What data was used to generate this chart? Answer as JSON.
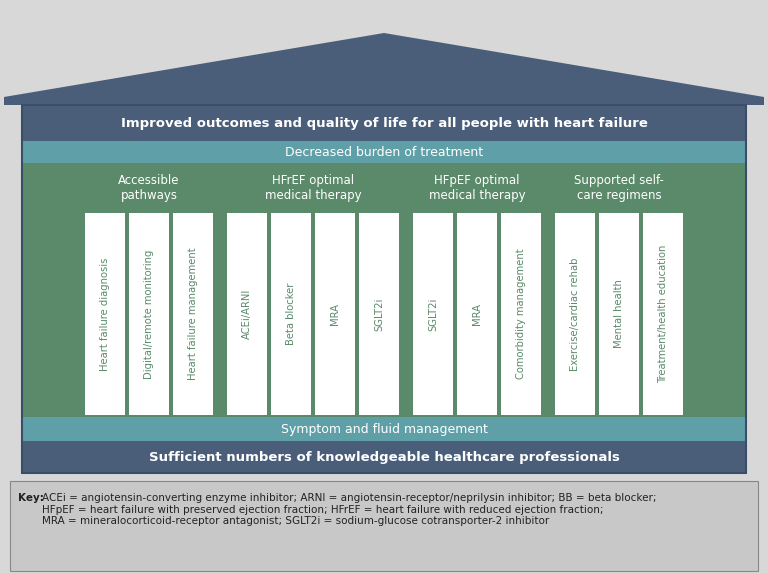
{
  "bg_color": "#d8d8d8",
  "roof_color": "#4a5e7a",
  "top_banner_color": "#4a5e7a",
  "top_banner_text": "Improved outcomes and quality of life for all people with heart failure",
  "second_banner_color": "#5fa0a8",
  "second_banner_text": "Decreased burden of treatment",
  "bottom_banner1_color": "#5fa0a8",
  "bottom_banner1_text": "Symptom and fluid management",
  "bottom_banner2_color": "#4a5e7a",
  "bottom_banner2_text": "Sufficient numbers of knowledgeable healthcare professionals",
  "main_bg": "#5a8a6a",
  "pillar_color": "#ffffff",
  "groups": [
    {
      "label": "Accessible\npathways",
      "pillars": [
        "Heart failure diagnosis",
        "Digital/remote monitoring",
        "Heart failure management"
      ]
    },
    {
      "label": "HFrEF optimal\nmedical therapy",
      "pillars": [
        "ACEi/ARNI",
        "Beta blocker",
        "MRA",
        "SGLT2i"
      ]
    },
    {
      "label": "HFpEF optimal\nmedical therapy",
      "pillars": [
        "SGLT2i",
        "MRA",
        "Comorbidity management"
      ]
    },
    {
      "label": "Supported self-\ncare regimens",
      "pillars": [
        "Exercise/cardiac rehab",
        "Mental health",
        "Treatment/health education"
      ]
    }
  ],
  "key_text_bold": "Key: ",
  "key_text_regular": "ACEi = angiotensin-converting enzyme inhibitor; ARNI = angiotensin-receptor/neprilysin inhibitor; BB = beta blocker;\nHFpEF = heart failure with preserved ejection fraction; HFrEF = heart failure with reduced ejection fraction;\nMRA = mineralocorticoid-receptor antagonist; SGLT2i = sodium-glucose cotransporter-2 inhibitor",
  "key_bg": "#c8c8c8",
  "fig_width": 7.68,
  "fig_height": 5.73,
  "dpi": 100
}
